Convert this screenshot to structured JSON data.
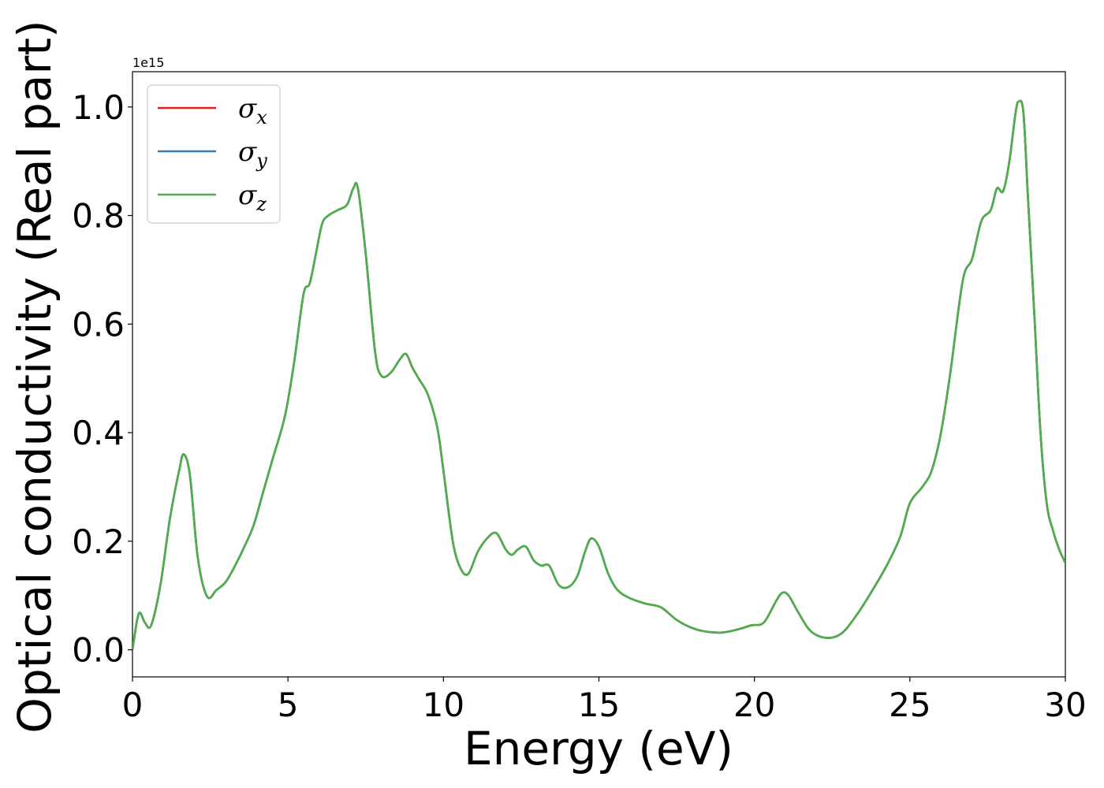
{
  "chart_data": {
    "type": "line",
    "xlabel": "Energy (eV)",
    "ylabel": "Optical conductivity (Real part)",
    "y_offset_text": "1e15",
    "y_multiplier": 1000000000000000.0,
    "xlim": [
      0,
      30
    ],
    "ylim": [
      -0.05,
      1.065
    ],
    "x_ticks": [
      0,
      5,
      10,
      15,
      20,
      25,
      30
    ],
    "x_tick_labels": [
      "0",
      "5",
      "10",
      "15",
      "20",
      "25",
      "30"
    ],
    "y_ticks": [
      0.0,
      0.2,
      0.4,
      0.6,
      0.8,
      1.0
    ],
    "y_tick_labels": [
      "0.0",
      "0.2",
      "0.4",
      "0.6",
      "0.8",
      "1.0"
    ],
    "grid": false,
    "legend_position": "top-left",
    "x": [
      0,
      0.15,
      0.25,
      0.4,
      0.6,
      0.9,
      1.2,
      1.5,
      1.65,
      1.85,
      2.1,
      2.4,
      2.7,
      3.0,
      3.3,
      3.6,
      3.9,
      4.2,
      4.5,
      4.9,
      5.2,
      5.5,
      5.7,
      5.9,
      6.1,
      6.3,
      6.6,
      6.9,
      7.1,
      7.25,
      7.5,
      7.8,
      8.0,
      8.3,
      8.6,
      8.8,
      9.0,
      9.2,
      9.5,
      9.8,
      10.0,
      10.3,
      10.55,
      10.8,
      11.1,
      11.4,
      11.7,
      12.0,
      12.2,
      12.4,
      12.65,
      12.9,
      13.15,
      13.4,
      13.7,
      14.0,
      14.3,
      14.55,
      14.75,
      15.0,
      15.3,
      15.6,
      16.0,
      16.5,
      17.0,
      17.5,
      18.0,
      18.5,
      19.0,
      19.5,
      19.9,
      20.3,
      20.7,
      20.9,
      21.1,
      21.4,
      21.8,
      22.3,
      22.8,
      23.3,
      23.8,
      24.3,
      24.7,
      25.0,
      25.4,
      25.7,
      26.0,
      26.3,
      26.7,
      27.0,
      27.3,
      27.6,
      27.8,
      28.0,
      28.2,
      28.4,
      28.5,
      28.65,
      28.8,
      29.0,
      29.2,
      29.4,
      29.6,
      29.8,
      30.0
    ],
    "series": [
      {
        "name": "σx",
        "color": "#e41a1c",
        "values": [
          0.0,
          0.055,
          0.068,
          0.05,
          0.045,
          0.12,
          0.24,
          0.33,
          0.36,
          0.32,
          0.17,
          0.098,
          0.11,
          0.125,
          0.155,
          0.19,
          0.23,
          0.29,
          0.35,
          0.43,
          0.53,
          0.655,
          0.675,
          0.73,
          0.785,
          0.8,
          0.81,
          0.82,
          0.85,
          0.85,
          0.73,
          0.55,
          0.505,
          0.51,
          0.535,
          0.545,
          0.52,
          0.5,
          0.47,
          0.41,
          0.33,
          0.2,
          0.15,
          0.14,
          0.18,
          0.205,
          0.215,
          0.185,
          0.175,
          0.185,
          0.19,
          0.165,
          0.155,
          0.155,
          0.12,
          0.115,
          0.135,
          0.18,
          0.205,
          0.19,
          0.14,
          0.11,
          0.095,
          0.085,
          0.078,
          0.055,
          0.04,
          0.033,
          0.032,
          0.038,
          0.045,
          0.05,
          0.09,
          0.105,
          0.1,
          0.07,
          0.035,
          0.022,
          0.03,
          0.065,
          0.11,
          0.16,
          0.21,
          0.27,
          0.3,
          0.33,
          0.4,
          0.51,
          0.68,
          0.72,
          0.79,
          0.81,
          0.85,
          0.845,
          0.9,
          0.99,
          1.01,
          0.99,
          0.83,
          0.62,
          0.4,
          0.27,
          0.22,
          0.185,
          0.16
        ]
      },
      {
        "name": "σy",
        "color": "#377eb8",
        "values": [
          0.0,
          0.055,
          0.068,
          0.05,
          0.045,
          0.12,
          0.24,
          0.33,
          0.36,
          0.32,
          0.17,
          0.098,
          0.11,
          0.125,
          0.155,
          0.19,
          0.23,
          0.29,
          0.35,
          0.43,
          0.53,
          0.655,
          0.675,
          0.73,
          0.785,
          0.8,
          0.81,
          0.82,
          0.85,
          0.85,
          0.73,
          0.55,
          0.505,
          0.51,
          0.535,
          0.545,
          0.52,
          0.5,
          0.47,
          0.41,
          0.33,
          0.2,
          0.15,
          0.14,
          0.18,
          0.205,
          0.215,
          0.185,
          0.175,
          0.185,
          0.19,
          0.165,
          0.155,
          0.155,
          0.12,
          0.115,
          0.135,
          0.18,
          0.205,
          0.19,
          0.14,
          0.11,
          0.095,
          0.085,
          0.078,
          0.055,
          0.04,
          0.033,
          0.032,
          0.038,
          0.045,
          0.05,
          0.09,
          0.105,
          0.1,
          0.07,
          0.035,
          0.022,
          0.03,
          0.065,
          0.11,
          0.16,
          0.21,
          0.27,
          0.3,
          0.33,
          0.4,
          0.51,
          0.68,
          0.72,
          0.79,
          0.81,
          0.85,
          0.845,
          0.9,
          0.99,
          1.01,
          0.99,
          0.83,
          0.62,
          0.4,
          0.27,
          0.22,
          0.185,
          0.16
        ]
      },
      {
        "name": "σz",
        "color": "#4daf4a",
        "values": [
          0.0,
          0.055,
          0.068,
          0.05,
          0.045,
          0.12,
          0.24,
          0.33,
          0.36,
          0.32,
          0.17,
          0.098,
          0.11,
          0.125,
          0.155,
          0.19,
          0.23,
          0.29,
          0.35,
          0.43,
          0.53,
          0.655,
          0.675,
          0.73,
          0.785,
          0.8,
          0.81,
          0.82,
          0.85,
          0.85,
          0.73,
          0.55,
          0.505,
          0.51,
          0.535,
          0.545,
          0.52,
          0.5,
          0.47,
          0.41,
          0.33,
          0.2,
          0.15,
          0.14,
          0.18,
          0.205,
          0.215,
          0.185,
          0.175,
          0.185,
          0.19,
          0.165,
          0.155,
          0.155,
          0.12,
          0.115,
          0.135,
          0.18,
          0.205,
          0.19,
          0.14,
          0.11,
          0.095,
          0.085,
          0.078,
          0.055,
          0.04,
          0.033,
          0.032,
          0.038,
          0.045,
          0.05,
          0.09,
          0.105,
          0.1,
          0.07,
          0.035,
          0.022,
          0.03,
          0.065,
          0.11,
          0.16,
          0.21,
          0.27,
          0.3,
          0.33,
          0.4,
          0.51,
          0.68,
          0.72,
          0.79,
          0.81,
          0.85,
          0.845,
          0.9,
          0.99,
          1.01,
          0.99,
          0.83,
          0.62,
          0.4,
          0.27,
          0.22,
          0.185,
          0.16
        ]
      }
    ]
  }
}
